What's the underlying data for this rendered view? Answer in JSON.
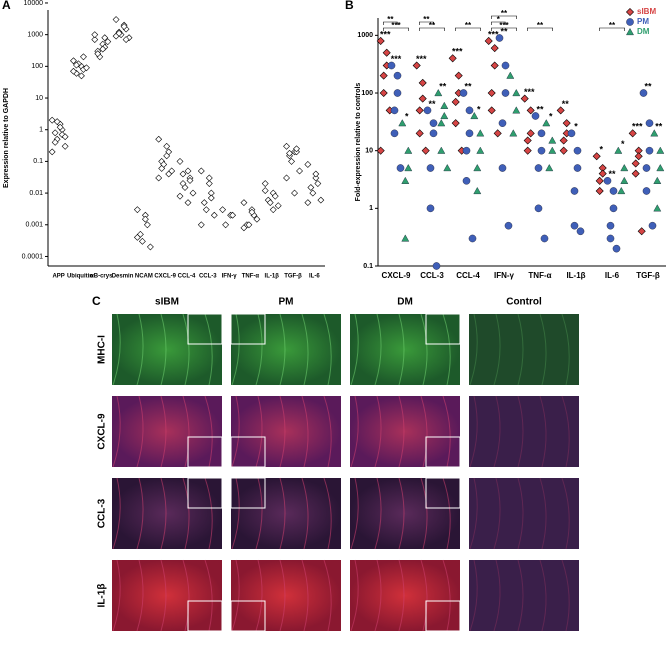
{
  "chart_data": [
    {
      "type": "scatter",
      "panel": "A",
      "y_label": "Expression relative to GAPDH",
      "log_y": true,
      "ylim": [
        5e-05,
        6000
      ],
      "yticks": [
        0.0001,
        0.001,
        0.01,
        0.1,
        1,
        10,
        100,
        1000,
        10000
      ],
      "categories": [
        "APP",
        "Ubiquitin",
        "αB-crys",
        "Desmin",
        "NCAM",
        "CXCL-9",
        "CCL-4",
        "CCL-3",
        "IFN-γ",
        "TNF-α",
        "IL-1β",
        "TGF-β",
        "IL-6"
      ],
      "series": [
        {
          "marker": "diamond",
          "color": "#ffffff",
          "values": [
            [
              2,
              1.5,
              1,
              0.8,
              0.5,
              0.3,
              0.2,
              1.2,
              0.7,
              0.4,
              1.8,
              0.6
            ],
            [
              150,
              100,
              80,
              60,
              120,
              90,
              70,
              50,
              200,
              110
            ],
            [
              700,
              500,
              400,
              300,
              200,
              600,
              1000,
              350,
              800,
              250
            ],
            [
              3000,
              2000,
              1500,
              1200,
              1000,
              800,
              900,
              1800,
              700,
              1100
            ],
            [
              0.003,
              0.002,
              0.001,
              0.0005,
              0.0003,
              0.0002,
              0.0004,
              0.0015
            ],
            [
              0.5,
              0.3,
              0.2,
              0.1,
              0.08,
              0.05,
              0.03,
              0.15,
              0.04,
              0.06
            ],
            [
              0.1,
              0.05,
              0.03,
              0.02,
              0.015,
              0.01,
              0.008,
              0.005,
              0.025,
              0.04
            ],
            [
              0.05,
              0.02,
              0.01,
              0.005,
              0.003,
              0.002,
              0.001,
              0.03,
              0.007
            ],
            [
              0.003,
              0.002,
              0.002,
              0.001
            ],
            [
              0.005,
              0.003,
              0.002,
              0.001,
              0.001,
              0.0015,
              0.0008,
              0.0025
            ],
            [
              0.02,
              0.01,
              0.008,
              0.006,
              0.005,
              0.004,
              0.012,
              0.003
            ],
            [
              0.3,
              0.2,
              0.2,
              0.15,
              0.1,
              0.05,
              0.03,
              0.01,
              0.25,
              0.18
            ],
            [
              0.08,
              0.03,
              0.02,
              0.015,
              0.01,
              0.006,
              0.005,
              0.04
            ]
          ]
        }
      ]
    },
    {
      "type": "scatter",
      "panel": "B",
      "y_label": "Fold-expression relative to controls",
      "log_y": true,
      "ylim": [
        0.1,
        2000
      ],
      "yticks": [
        0.1,
        1,
        10,
        100,
        1000
      ],
      "legend": "top-right",
      "categories": [
        "CXCL-9",
        "CCL-3",
        "CCL-4",
        "IFN-γ",
        "TNF-α",
        "IL-1β",
        "IL-6",
        "TGF-β"
      ],
      "series": [
        {
          "name": "sIBM",
          "marker": "diamond",
          "color": "#d64545",
          "values": [
            [
              800,
              500,
              300,
              200,
              100,
              50,
              10
            ],
            [
              300,
              150,
              80,
              50,
              20,
              10
            ],
            [
              400,
              200,
              100,
              70,
              30,
              10
            ],
            [
              800,
              600,
              300,
              100,
              50,
              20
            ],
            [
              80,
              50,
              20,
              15,
              10
            ],
            [
              50,
              30,
              20,
              15,
              10
            ],
            [
              8,
              5,
              4,
              3,
              2
            ],
            [
              20,
              10,
              8,
              6,
              4,
              0.4
            ]
          ],
          "significance": [
            "***",
            "***",
            "***",
            "***",
            "***",
            "**",
            "*",
            "***"
          ]
        },
        {
          "name": "PM",
          "marker": "circle",
          "color": "#3f5fb8",
          "values": [
            [
              300,
              200,
              100,
              50,
              20,
              5
            ],
            [
              50,
              30,
              20,
              5,
              1,
              0.1
            ],
            [
              100,
              50,
              20,
              10,
              3,
              0.3
            ],
            [
              900,
              300,
              100,
              30,
              5,
              0.5
            ],
            [
              40,
              20,
              10,
              5,
              1,
              0.3
            ],
            [
              20,
              10,
              5,
              2,
              0.5,
              0.4
            ],
            [
              3,
              2,
              1,
              0.5,
              0.3,
              0.2
            ],
            [
              100,
              30,
              10,
              5,
              2,
              0.5
            ]
          ],
          "significance": [
            "***",
            "**",
            "**",
            "**",
            "**",
            "*",
            "**",
            "**"
          ]
        },
        {
          "name": "DM",
          "marker": "triangle",
          "color": "#2f9e6e",
          "values": [
            [
              30,
              10,
              5,
              3,
              0.3
            ],
            [
              100,
              60,
              40,
              30,
              10,
              5
            ],
            [
              40,
              20,
              10,
              5,
              2
            ],
            [
              200,
              100,
              50,
              20
            ],
            [
              30,
              15,
              10,
              5
            ],
            [],
            [
              10,
              5,
              3,
              2
            ],
            [
              20,
              10,
              5,
              3,
              1
            ]
          ],
          "significance": [
            "*",
            "**",
            "*",
            null,
            "*",
            null,
            "*",
            "**"
          ]
        }
      ],
      "brackets": [
        {
          "category": 0,
          "label": "***"
        },
        {
          "category": 0,
          "label": "**"
        },
        {
          "category": 1,
          "label": "**"
        },
        {
          "category": 1,
          "label": "**"
        },
        {
          "category": 2,
          "label": "**"
        },
        {
          "category": 3,
          "label": "***"
        },
        {
          "category": 3,
          "label": "*"
        },
        {
          "category": 3,
          "label": "**"
        },
        {
          "category": 4,
          "label": "**"
        },
        {
          "category": 6,
          "label": "**"
        }
      ]
    }
  ],
  "image_panel": {
    "panel": "C",
    "columns": [
      "sIBM",
      "PM",
      "DM",
      "Control"
    ],
    "rows": [
      "MHC-I",
      "CXCL-9",
      "CCL-3",
      "IL-1β"
    ]
  }
}
